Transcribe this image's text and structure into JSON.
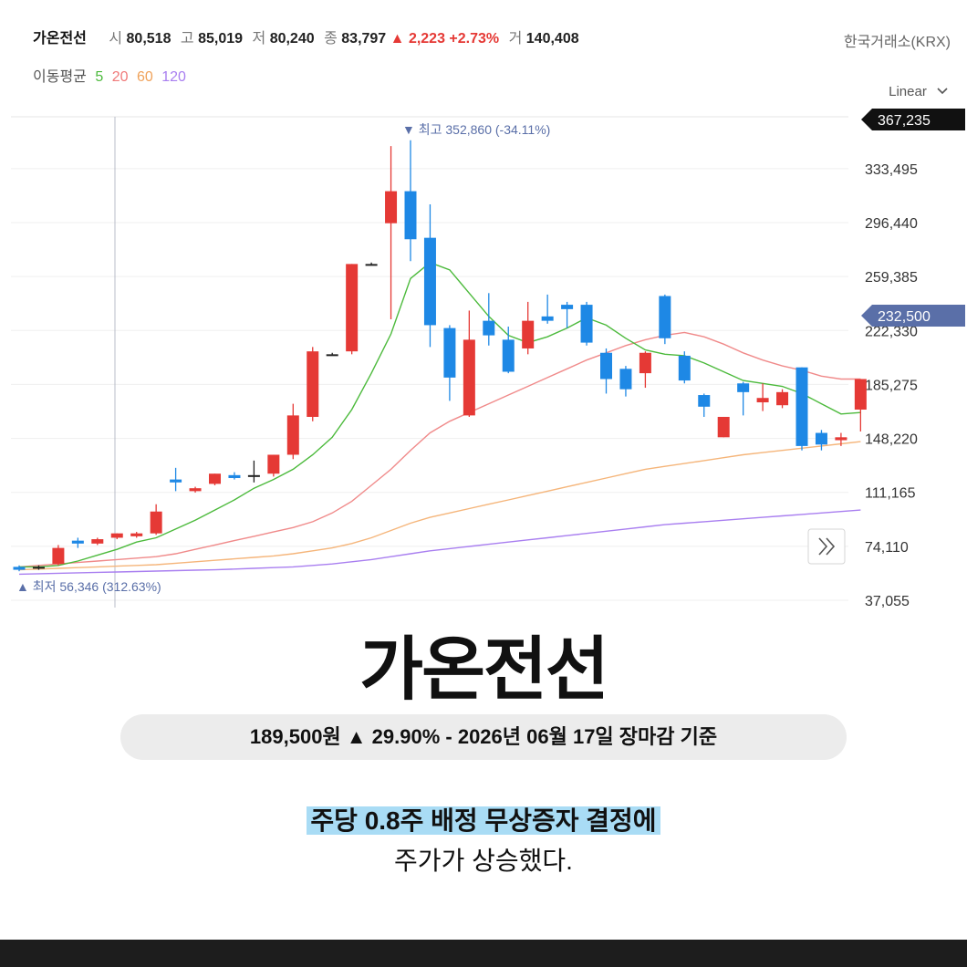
{
  "header": {
    "name": "가온전선",
    "open_label": "시",
    "open": "80,518",
    "high_label": "고",
    "high": "85,019",
    "low_label": "저",
    "low": "80,240",
    "close_label": "종",
    "close": "83,797",
    "change": "▲ 2,223 +2.73%",
    "volume_label": "거",
    "volume": "140,408",
    "exchange": "한국거래소(KRX)"
  },
  "ma_legend": {
    "label": "이동평균",
    "p5": "5",
    "p20": "20",
    "p60": "60",
    "p120": "120"
  },
  "scale_mode": "Linear",
  "colors": {
    "up": "#e53935",
    "down": "#1e88e5",
    "ma5": "#4cba3c",
    "ma20": "#f08a8a",
    "ma60": "#f5b57a",
    "ma120": "#a97ff0",
    "accent": "#5a6fa8"
  },
  "chart_data": {
    "type": "candlestick",
    "y_ticks": [
      37055,
      74110,
      111165,
      148220,
      185275,
      222330,
      259385,
      296440,
      333495
    ],
    "ylim": [
      37055,
      367235
    ],
    "top_tag": "367,235",
    "price_tag": "232,500",
    "high_marker": "▼ 최고 352,860 (-34.11%)",
    "low_marker": "▲ 최저 56,346 (312.63%)",
    "expand_icon": "double-chevron-right-icon",
    "candles": [
      {
        "o": 60000,
        "h": 61000,
        "l": 57000,
        "c": 58000
      },
      {
        "o": 59000,
        "h": 61000,
        "l": 58000,
        "c": 60000
      },
      {
        "o": 62000,
        "h": 75000,
        "l": 61000,
        "c": 73000
      },
      {
        "o": 78000,
        "h": 80000,
        "l": 73000,
        "c": 76000
      },
      {
        "o": 76000,
        "h": 80000,
        "l": 75000,
        "c": 79000
      },
      {
        "o": 80000,
        "h": 83000,
        "l": 79000,
        "c": 83000
      },
      {
        "o": 81000,
        "h": 84000,
        "l": 80000,
        "c": 83000
      },
      {
        "o": 83000,
        "h": 103000,
        "l": 82000,
        "c": 98000
      },
      {
        "o": 120000,
        "h": 128000,
        "l": 112000,
        "c": 118000
      },
      {
        "o": 112000,
        "h": 115000,
        "l": 111000,
        "c": 114000
      },
      {
        "o": 117000,
        "h": 124000,
        "l": 116000,
        "c": 124000
      },
      {
        "o": 123000,
        "h": 125000,
        "l": 120000,
        "c": 121000
      },
      {
        "o": 123000,
        "h": 133000,
        "l": 118000,
        "c": 122000
      },
      {
        "o": 124000,
        "h": 137000,
        "l": 122000,
        "c": 137000
      },
      {
        "o": 137000,
        "h": 172000,
        "l": 134000,
        "c": 164000
      },
      {
        "o": 163000,
        "h": 211000,
        "l": 160000,
        "c": 208000
      },
      {
        "o": 206000,
        "h": 207000,
        "l": 205000,
        "c": 206000
      },
      {
        "o": 208000,
        "h": 268000,
        "l": 206000,
        "c": 268000
      },
      {
        "o": 268000,
        "h": 269000,
        "l": 267000,
        "c": 268000
      },
      {
        "o": 296000,
        "h": 349000,
        "l": 230000,
        "c": 318000
      },
      {
        "o": 318000,
        "h": 353000,
        "l": 270000,
        "c": 285000
      },
      {
        "o": 286000,
        "h": 309000,
        "l": 211000,
        "c": 226000
      },
      {
        "o": 224000,
        "h": 226000,
        "l": 174000,
        "c": 190000
      },
      {
        "o": 164000,
        "h": 236000,
        "l": 163000,
        "c": 216000
      },
      {
        "o": 229000,
        "h": 248000,
        "l": 212000,
        "c": 219000
      },
      {
        "o": 216000,
        "h": 225000,
        "l": 193000,
        "c": 194000
      },
      {
        "o": 210000,
        "h": 242000,
        "l": 206000,
        "c": 229000
      },
      {
        "o": 232000,
        "h": 247000,
        "l": 227000,
        "c": 229000
      },
      {
        "o": 240000,
        "h": 242000,
        "l": 224000,
        "c": 237000
      },
      {
        "o": 240000,
        "h": 242000,
        "l": 212000,
        "c": 214000
      },
      {
        "o": 207000,
        "h": 210000,
        "l": 179000,
        "c": 189000
      },
      {
        "o": 196000,
        "h": 198000,
        "l": 177000,
        "c": 182000
      },
      {
        "o": 193000,
        "h": 208000,
        "l": 183000,
        "c": 207000
      },
      {
        "o": 246000,
        "h": 247000,
        "l": 213000,
        "c": 217000
      },
      {
        "o": 205000,
        "h": 208000,
        "l": 186000,
        "c": 188000
      },
      {
        "o": 178000,
        "h": 179000,
        "l": 163000,
        "c": 170000
      },
      {
        "o": 149000,
        "h": 163000,
        "l": 149000,
        "c": 163000
      },
      {
        "o": 186000,
        "h": 187000,
        "l": 164000,
        "c": 180000
      },
      {
        "o": 173000,
        "h": 186000,
        "l": 167000,
        "c": 176000
      },
      {
        "o": 171000,
        "h": 182000,
        "l": 169000,
        "c": 180000
      },
      {
        "o": 197000,
        "h": 197000,
        "l": 140000,
        "c": 143000
      },
      {
        "o": 152000,
        "h": 154000,
        "l": 140000,
        "c": 144000
      },
      {
        "o": 147000,
        "h": 152000,
        "l": 143000,
        "c": 149000
      },
      {
        "o": 168000,
        "h": 189000,
        "l": 153000,
        "c": 189000
      }
    ],
    "ma5": [
      60000,
      60000,
      61000,
      64000,
      68000,
      72000,
      77000,
      80000,
      86000,
      92000,
      99000,
      106000,
      114000,
      120000,
      127000,
      137000,
      149000,
      168000,
      193000,
      220000,
      258000,
      269000,
      264000,
      248000,
      232000,
      219000,
      214000,
      218000,
      224000,
      231000,
      226000,
      217000,
      209000,
      206000,
      205000,
      200000,
      194000,
      188000,
      186000,
      184000,
      179000,
      172000,
      165000,
      166000
    ],
    "ma20": [
      60000,
      61000,
      62000,
      63000,
      64000,
      65000,
      66000,
      67000,
      69000,
      72000,
      75000,
      78000,
      81000,
      84000,
      87000,
      91000,
      97000,
      105000,
      116000,
      127000,
      140000,
      152000,
      160000,
      166000,
      172000,
      178000,
      184000,
      190000,
      196000,
      202000,
      207000,
      212000,
      216000,
      219000,
      221000,
      218000,
      213000,
      207000,
      202000,
      198000,
      195000,
      191000,
      189000,
      189000
    ],
    "ma60": [
      58000,
      58500,
      59000,
      59500,
      60000,
      60500,
      61000,
      61500,
      62500,
      63500,
      64500,
      65500,
      66500,
      67500,
      69000,
      71000,
      73000,
      76000,
      80000,
      85000,
      90000,
      94000,
      97000,
      100000,
      103000,
      106000,
      109000,
      112000,
      115000,
      118000,
      121000,
      124000,
      127000,
      129000,
      131000,
      133000,
      135000,
      137000,
      138500,
      140000,
      141500,
      143000,
      144500,
      146000
    ],
    "ma120": [
      55000,
      55300,
      55600,
      55900,
      56200,
      56500,
      56800,
      57100,
      57400,
      57700,
      58000,
      58500,
      59000,
      59500,
      60000,
      61000,
      62000,
      63500,
      65000,
      67000,
      69000,
      71000,
      72500,
      74000,
      75500,
      77000,
      78500,
      80000,
      81500,
      83000,
      84500,
      86000,
      87500,
      89000,
      90000,
      91000,
      92000,
      93000,
      94000,
      95000,
      96000,
      97000,
      98000,
      99000
    ]
  },
  "footer": {
    "title": "가온전선",
    "price_line": "189,500원 ▲ 29.90% - 2026년 06월 17일 장마감 기준",
    "highlight": "주당 0.8주 배정 무상증자 결정에",
    "line2": "주가가 상승했다."
  }
}
